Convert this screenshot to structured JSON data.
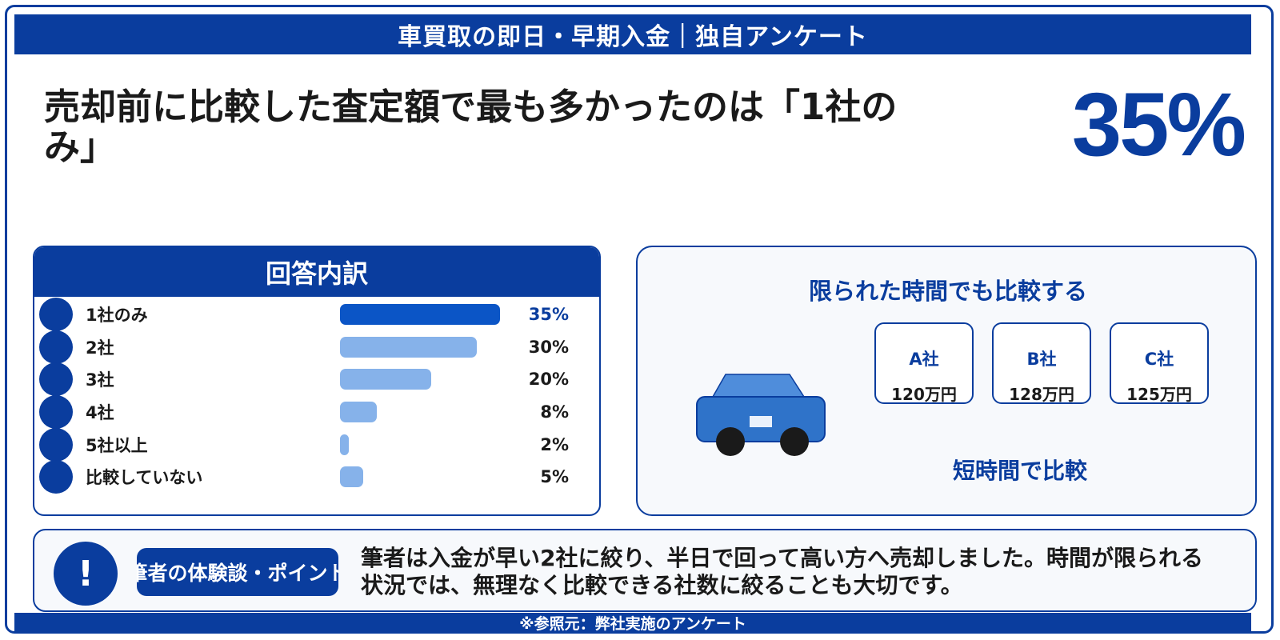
{
  "header": {
    "banner_title": "車買取の即日・早期入金｜独自アンケート"
  },
  "headline": {
    "text": "売却前に比較した査定額で最も多かったのは「1社のみ」",
    "highlight_value": "35%"
  },
  "breakdown": {
    "title": "回答内訳",
    "rows": [
      {
        "label": "1社のみ",
        "value": "35%",
        "fraction": 0.35
      },
      {
        "label": "2社",
        "value": "30%",
        "fraction": 0.3
      },
      {
        "label": "3社",
        "value": "20%",
        "fraction": 0.2
      },
      {
        "label": "4社",
        "value": "8%",
        "fraction": 0.08
      },
      {
        "label": "5社以上",
        "value": "2%",
        "fraction": 0.02
      },
      {
        "label": "比較していない",
        "value": "5%",
        "fraction": 0.05
      }
    ]
  },
  "compare": {
    "title": "限られた時間でも比較する",
    "companies": [
      {
        "name": "A社",
        "price": "120万円"
      },
      {
        "name": "B社",
        "price": "128万円"
      },
      {
        "name": "C社",
        "price": "125万円"
      }
    ],
    "caption": "短時間で比較"
  },
  "note": {
    "icon": "!",
    "tag": "筆者の体験談・ポイント",
    "text": "筆者は入金が早い2社に絞り、半日で回って高い方へ売却しました。時間が限られる状況では、無理なく比較できる社数に絞ることも大切です。"
  },
  "footer": {
    "source": "※参照元：弊社実施のアンケート"
  },
  "colors": {
    "primary": "#0a3d9e",
    "bar_highlight": "#0b55c6",
    "bar_default": "#86b2ea"
  }
}
